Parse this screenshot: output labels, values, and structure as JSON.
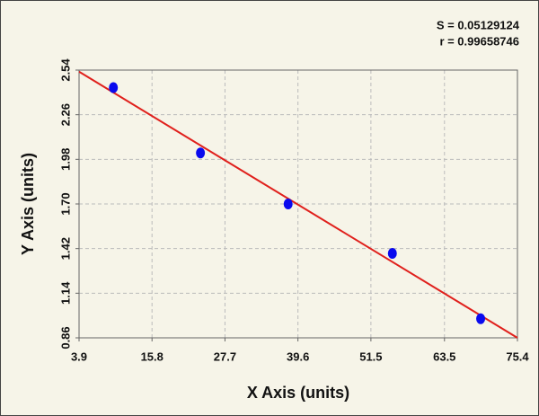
{
  "chart_data": {
    "type": "scatter",
    "annotations": [
      "S = 0.05129124",
      "r = 0.99658746"
    ],
    "x_label": "X Axis (units)",
    "y_label": "Y Axis (units)",
    "x": [
      9.5,
      23.7,
      38.0,
      55.0,
      69.4
    ],
    "values": [
      2.43,
      2.02,
      1.7,
      1.39,
      0.98
    ],
    "color": "#0a0aee",
    "fit": {
      "x": [
        3.9,
        75.4
      ],
      "values": [
        2.53,
        0.86
      ],
      "color": "#e0201c"
    },
    "xlim": [
      3.9,
      75.4
    ],
    "ylim": [
      0.86,
      2.54
    ],
    "xticks": [
      3.9,
      15.8,
      27.7,
      39.6,
      51.5,
      63.5,
      75.4
    ],
    "yticks": [
      0.86,
      1.14,
      1.42,
      {
        "value": 1.7,
        "label": "1.70"
      },
      1.98,
      2.26,
      2.54
    ],
    "grid": true
  }
}
